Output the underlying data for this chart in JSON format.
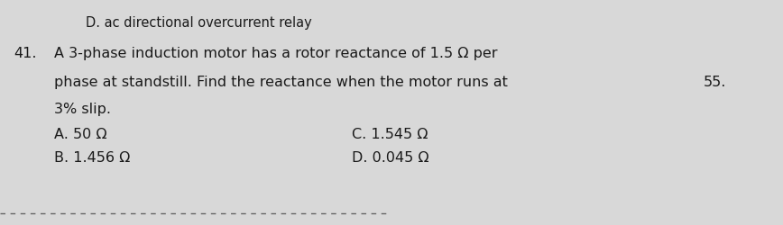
{
  "bg_color": "#d8d8d8",
  "header_text": "D. ac directional overcurrent relay",
  "question_number": "41.",
  "question_line1": "A 3-phase induction motor has a rotor reactance of 1.5 Ω per",
  "question_line2": "phase at standstill. Find the reactance when the motor runs at",
  "question_line3": "3% slip.",
  "side_number": "55.",
  "option_A": "A. 50 Ω",
  "option_B": "B. 1.456 Ω",
  "option_C": "C. 1.545 Ω",
  "option_D": "D. 0.045 Ω",
  "font_size_header": 10.5,
  "font_size_question": 11.5,
  "font_size_options": 11.5,
  "text_color": "#1a1a1a"
}
